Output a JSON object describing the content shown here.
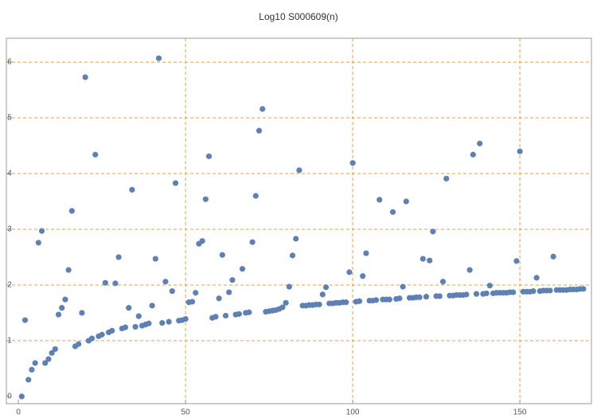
{
  "chart_data": {
    "type": "scatter",
    "title": "Log10 S000609(n)",
    "x": [
      1,
      2,
      3,
      4,
      5,
      6,
      7,
      8,
      9,
      10,
      11,
      12,
      13,
      14,
      15,
      16,
      17,
      18,
      19,
      20,
      21,
      22,
      23,
      24,
      25,
      26,
      27,
      28,
      29,
      30,
      31,
      32,
      33,
      34,
      35,
      36,
      37,
      38,
      39,
      40,
      41,
      42,
      43,
      44,
      45,
      46,
      47,
      48,
      49,
      50,
      51,
      52,
      53,
      54,
      55,
      56,
      57,
      58,
      59,
      60,
      61,
      62,
      63,
      64,
      65,
      66,
      67,
      68,
      69,
      70,
      71,
      72,
      73,
      74,
      75,
      76,
      77,
      78,
      79,
      80,
      81,
      82,
      83,
      84,
      85,
      86,
      87,
      88,
      89,
      90,
      91,
      92,
      93,
      94,
      95,
      96,
      97,
      98,
      99,
      100,
      101,
      102,
      103,
      104,
      105,
      106,
      107,
      108,
      109,
      110,
      111,
      112,
      113,
      114,
      115,
      116,
      117,
      118,
      119,
      120,
      121,
      122,
      123,
      124,
      125,
      126,
      127,
      128,
      129,
      130,
      131,
      132,
      133,
      134,
      135,
      136,
      137,
      138,
      139,
      140,
      141,
      142,
      143,
      144,
      145,
      146,
      147,
      148,
      149,
      150,
      151,
      152,
      153,
      154,
      155,
      156,
      157,
      158,
      159,
      160,
      161,
      162,
      163,
      164,
      165,
      166,
      167,
      168,
      169
    ],
    "values": [
      0,
      1.37,
      0.3,
      0.48,
      0.6,
      2.76,
      2.97,
      0.6,
      0.67,
      0.78,
      0.85,
      1.47,
      1.59,
      1.74,
      2.27,
      3.33,
      0.9,
      0.94,
      1.5,
      5.73,
      1.0,
      1.04,
      4.34,
      1.08,
      1.11,
      2.04,
      1.15,
      1.18,
      2.03,
      2.5,
      1.22,
      1.24,
      1.59,
      3.71,
      1.25,
      1.44,
      1.27,
      1.29,
      1.31,
      1.63,
      2.47,
      6.07,
      1.32,
      2.06,
      1.34,
      1.89,
      3.83,
      1.36,
      1.37,
      1.39,
      1.69,
      1.7,
      1.86,
      2.74,
      2.79,
      3.54,
      4.31,
      1.41,
      1.43,
      1.76,
      2.54,
      1.45,
      1.87,
      2.09,
      1.47,
      1.48,
      2.29,
      1.5,
      1.51,
      2.77,
      3.6,
      4.77,
      5.16,
      1.52,
      1.53,
      1.54,
      1.55,
      1.57,
      1.6,
      1.68,
      1.97,
      2.53,
      2.83,
      4.06,
      1.63,
      1.63,
      1.64,
      1.64,
      1.65,
      1.65,
      1.83,
      1.96,
      1.67,
      1.67,
      1.68,
      1.68,
      1.69,
      1.69,
      2.23,
      4.19,
      1.7,
      1.71,
      2.16,
      2.57,
      1.72,
      1.72,
      1.73,
      3.53,
      1.74,
      1.74,
      1.74,
      3.31,
      1.75,
      1.76,
      1.97,
      3.5,
      1.77,
      1.77,
      1.78,
      1.78,
      2.47,
      1.79,
      2.44,
      2.96,
      1.8,
      1.8,
      2.06,
      3.91,
      1.81,
      1.81,
      1.82,
      1.82,
      1.82,
      1.83,
      2.27,
      4.34,
      1.84,
      4.54,
      1.84,
      1.85,
      1.99,
      1.85,
      1.86,
      1.86,
      1.86,
      1.86,
      1.87,
      1.87,
      2.43,
      4.4,
      1.88,
      1.88,
      1.88,
      1.89,
      2.13,
      1.89,
      1.9,
      1.9,
      1.9,
      2.51,
      1.91,
      1.91,
      1.91,
      1.91,
      1.92,
      1.92,
      1.92,
      1.93,
      1.93
    ],
    "color": "#5e81b5",
    "grid_color": "#e8a33a",
    "xlim": [
      -3.6,
      171.4
    ],
    "ylim": [
      -0.13,
      6.43
    ],
    "xticks": [
      0,
      50,
      100,
      150
    ],
    "yticks": [
      0,
      1,
      2,
      3,
      4,
      5,
      6
    ],
    "xgrid": [
      50,
      100,
      150
    ],
    "ygrid": [
      1,
      2,
      3,
      4,
      5,
      6
    ]
  }
}
